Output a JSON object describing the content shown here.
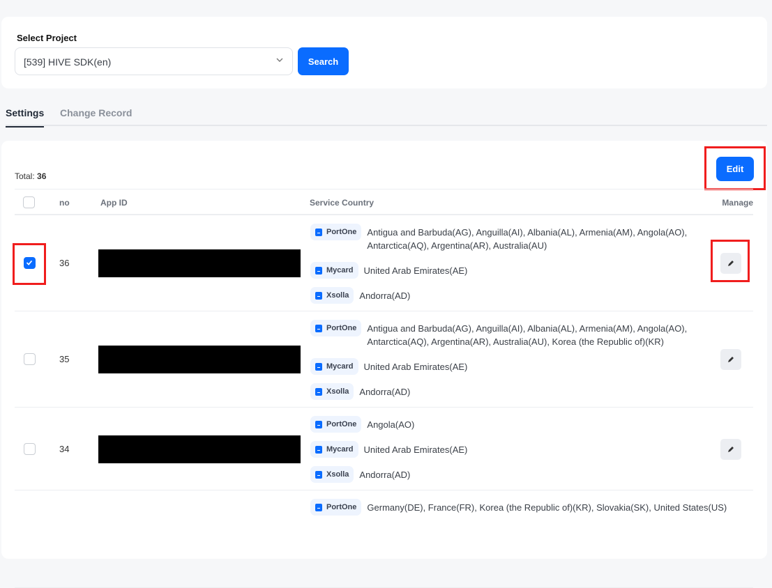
{
  "project": {
    "label": "Select Project",
    "selected": "[539] HIVE SDK(en)",
    "search_label": "Search"
  },
  "tabs": [
    {
      "label": "Settings",
      "active": true
    },
    {
      "label": "Change Record",
      "active": false
    }
  ],
  "total": {
    "label": "Total:",
    "value": "36"
  },
  "edit_label": "Edit",
  "columns": {
    "no": "no",
    "app_id": "App ID",
    "service_country": "Service Country",
    "manage": "Manage"
  },
  "accent": "#0a6cff",
  "rows": [
    {
      "no": "36",
      "checked": true,
      "services": [
        {
          "provider": "PortOne",
          "countries": "Antigua and Barbuda(AG), Anguilla(AI), Albania(AL), Armenia(AM), Angola(AO), Antarctica(AQ), Argentina(AR), Australia(AU)"
        },
        {
          "provider": "Mycard",
          "countries": "United Arab Emirates(AE)"
        },
        {
          "provider": "Xsolla",
          "countries": "Andorra(AD)"
        }
      ]
    },
    {
      "no": "35",
      "checked": false,
      "services": [
        {
          "provider": "PortOne",
          "countries": "Antigua and Barbuda(AG), Anguilla(AI), Albania(AL), Armenia(AM), Angola(AO), Antarctica(AQ), Argentina(AR), Australia(AU), Korea (the Republic of)(KR)"
        },
        {
          "provider": "Mycard",
          "countries": "United Arab Emirates(AE)"
        },
        {
          "provider": "Xsolla",
          "countries": "Andorra(AD)"
        }
      ]
    },
    {
      "no": "34",
      "checked": false,
      "services": [
        {
          "provider": "PortOne",
          "countries": "Angola(AO)"
        },
        {
          "provider": "Mycard",
          "countries": "United Arab Emirates(AE)"
        },
        {
          "provider": "Xsolla",
          "countries": "Andorra(AD)"
        }
      ]
    },
    {
      "services": [
        {
          "provider": "PortOne",
          "countries": "Germany(DE), France(FR), Korea (the Republic of)(KR), Slovakia(SK), United States(US)"
        }
      ]
    }
  ]
}
